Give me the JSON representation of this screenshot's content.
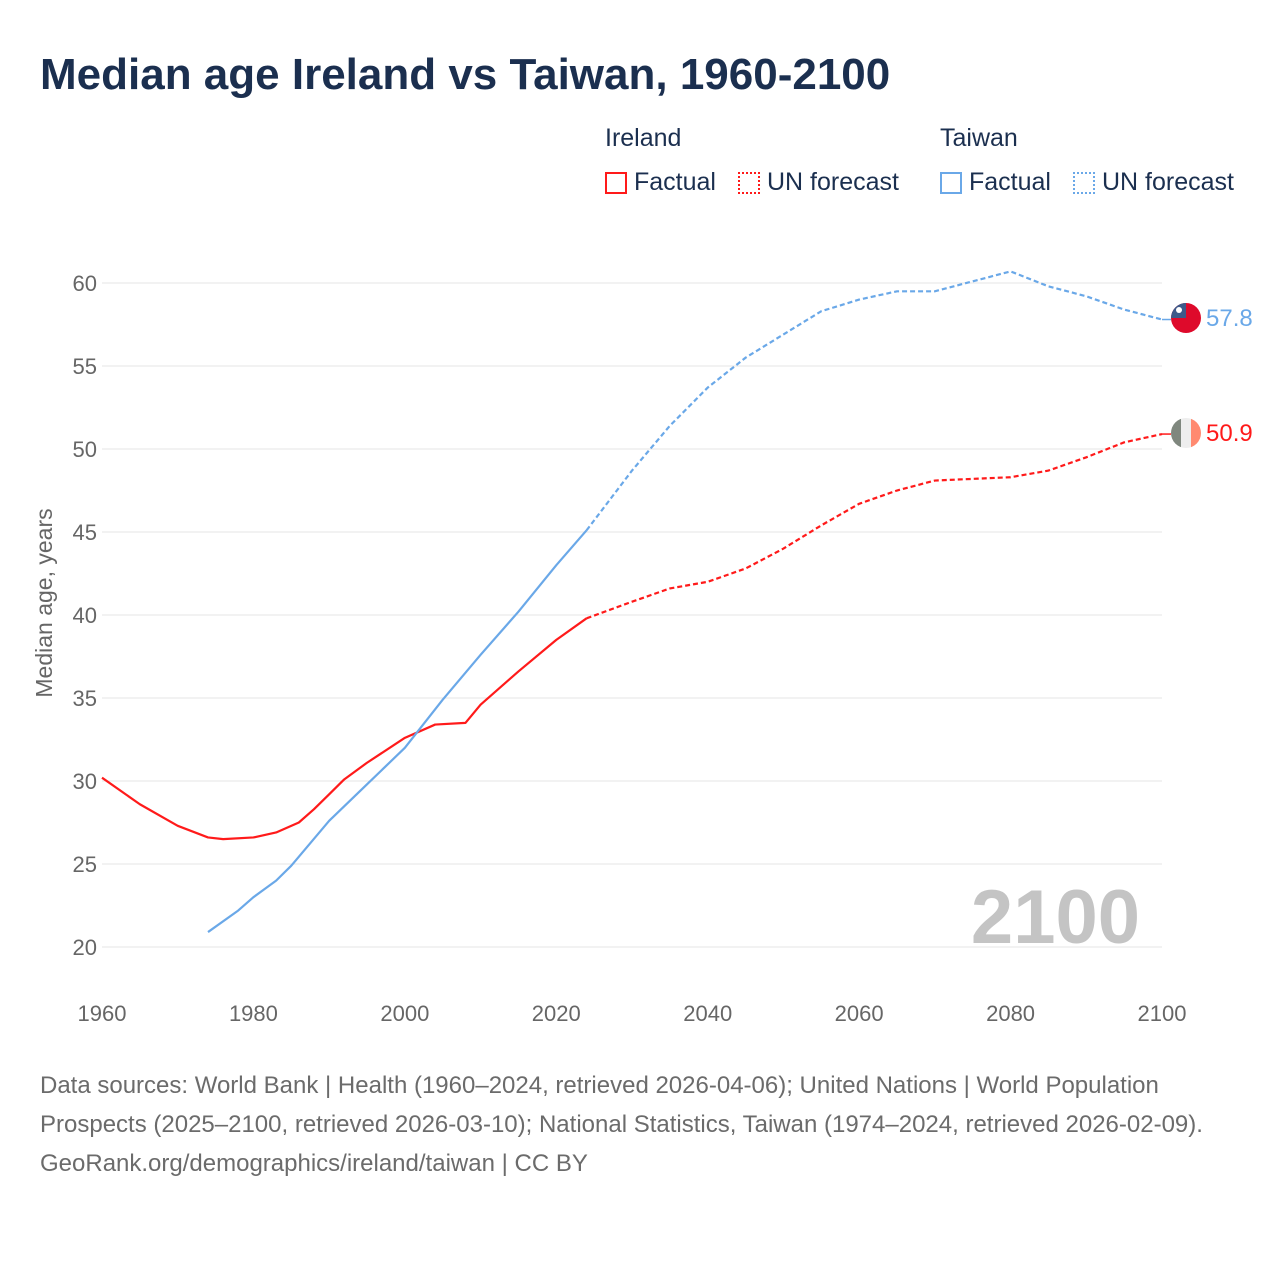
{
  "title": "Median age Ireland vs Taiwan, 1960-2100",
  "legend": {
    "ireland": {
      "group": "Ireland",
      "factual": "Factual",
      "forecast": "UN forecast"
    },
    "taiwan": {
      "group": "Taiwan",
      "factual": "Factual",
      "forecast": "UN forecast"
    }
  },
  "year_watermark": "2100",
  "sources": "Data sources: World Bank | Health (1960–2024, retrieved 2026-04-06); United Nations | World Population Prospects (2025–2100, retrieved 2026-03-10); National Statistics, Taiwan (1974–2024, retrieved 2026-02-09).",
  "footer": "GeoRank.org/demographics/ireland/taiwan | CC BY",
  "colors": {
    "ireland": "#ff1a1a",
    "taiwan": "#6aa8e8",
    "title": "#1b2f4f"
  },
  "chart_data": {
    "type": "line",
    "title": "Median age Ireland vs Taiwan, 1960-2100",
    "ylabel": "Median age, years",
    "xlabel": "",
    "xlim": [
      1960,
      2100
    ],
    "ylim": [
      20,
      60
    ],
    "xticks": [
      "1960",
      "1980",
      "2000",
      "2020",
      "2040",
      "2060",
      "2080",
      "2100"
    ],
    "yticks": [
      "20",
      "25",
      "30",
      "35",
      "40",
      "45",
      "50",
      "55",
      "60"
    ],
    "grid": true,
    "legend_position": "top-right",
    "forecast_start": 2024,
    "series": [
      {
        "name": "Ireland",
        "end_label": "50.9",
        "x": [
          1960,
          1965,
          1970,
          1974,
          1976,
          1980,
          1983,
          1986,
          1988,
          1990,
          1992,
          1995,
          2000,
          2004,
          2008,
          2010,
          2015,
          2020,
          2024,
          2030,
          2035,
          2040,
          2045,
          2050,
          2055,
          2060,
          2065,
          2070,
          2075,
          2080,
          2085,
          2090,
          2095,
          2100
        ],
        "y": [
          30.2,
          28.6,
          27.3,
          26.6,
          26.5,
          26.6,
          26.9,
          27.5,
          28.3,
          29.2,
          30.1,
          31.1,
          32.6,
          33.4,
          33.5,
          34.6,
          36.6,
          38.5,
          39.8,
          40.8,
          41.6,
          42.0,
          42.8,
          44.0,
          45.4,
          46.7,
          47.5,
          48.1,
          48.2,
          48.3,
          48.7,
          49.5,
          50.4,
          50.9
        ]
      },
      {
        "name": "Taiwan",
        "end_label": "57.8",
        "x": [
          1974,
          1978,
          1980,
          1983,
          1985,
          1990,
          1995,
          2000,
          2005,
          2010,
          2015,
          2020,
          2024,
          2030,
          2035,
          2040,
          2045,
          2050,
          2055,
          2060,
          2065,
          2070,
          2075,
          2080,
          2085,
          2090,
          2095,
          2100
        ],
        "y": [
          20.9,
          22.2,
          23.0,
          24.0,
          24.9,
          27.6,
          29.8,
          32.0,
          34.9,
          37.6,
          40.2,
          43.0,
          45.1,
          48.7,
          51.4,
          53.7,
          55.5,
          56.9,
          58.3,
          59.0,
          59.5,
          59.5,
          60.1,
          60.7,
          59.8,
          59.2,
          58.4,
          57.8
        ]
      }
    ]
  }
}
